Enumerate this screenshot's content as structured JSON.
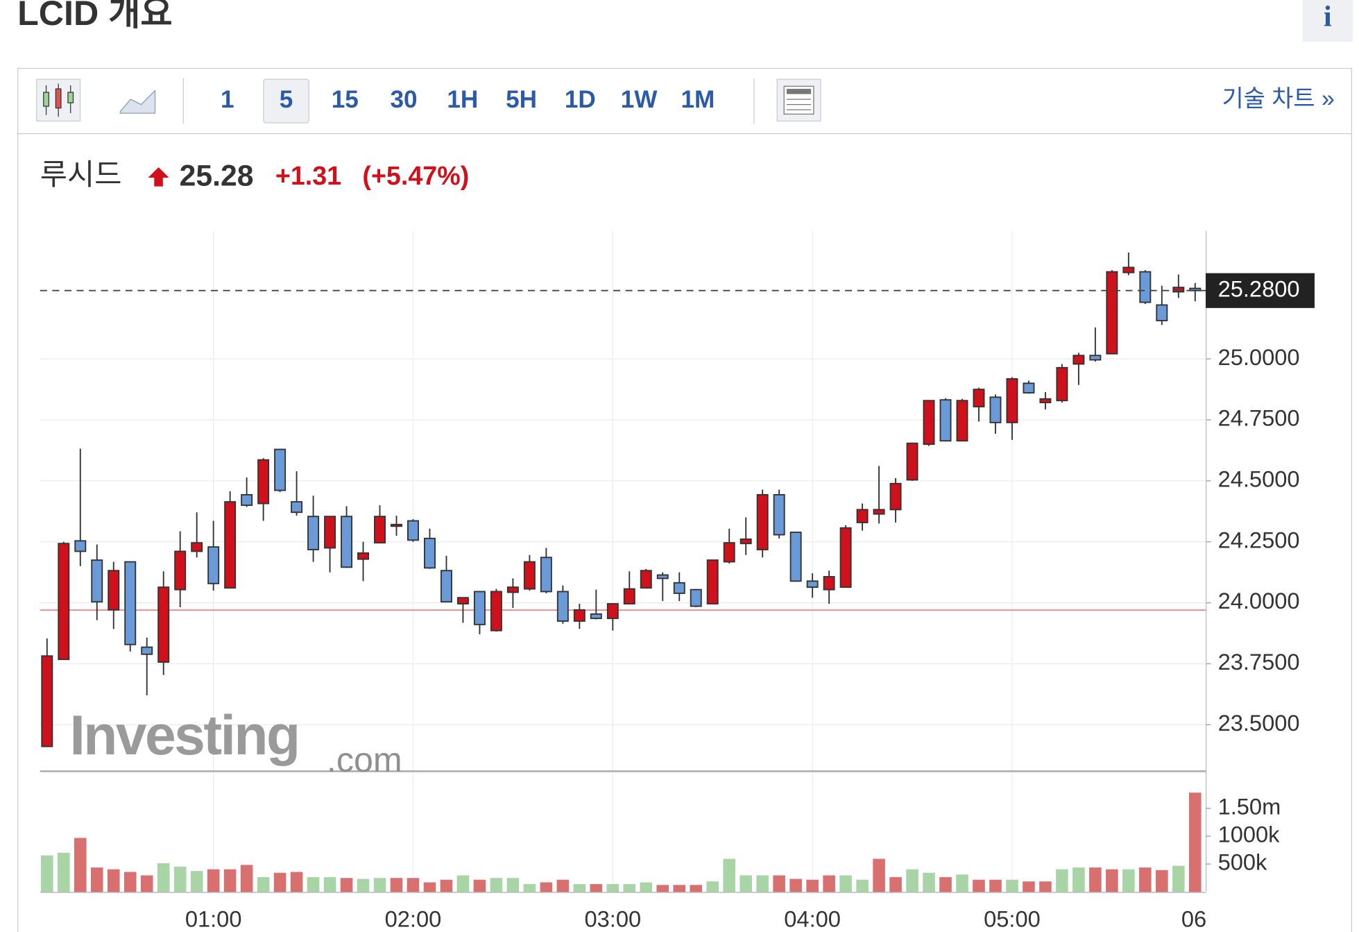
{
  "header": {
    "title": "LCID 개요",
    "info": "i"
  },
  "toolbar": {
    "intervals": [
      "1",
      "5",
      "15",
      "30",
      "1H",
      "5H",
      "1D",
      "1W",
      "1M"
    ],
    "active": "5",
    "technical": "기술 차트 »"
  },
  "quote": {
    "name": "루시드",
    "price": "25.28",
    "change": "+1.31",
    "change_pct": "(+5.47%)"
  },
  "watermark": {
    "brand": "Investing",
    "suffix": ".com"
  },
  "chart_data": {
    "type": "candlestick",
    "categories": [
      null,
      null,
      null,
      null,
      null,
      null,
      null,
      null,
      null,
      null,
      "01:00",
      null,
      null,
      null,
      null,
      null,
      null,
      null,
      null,
      null,
      null,
      null,
      "02:00",
      null,
      null,
      null,
      null,
      null,
      null,
      null,
      null,
      null,
      null,
      null,
      "03:00",
      null,
      null,
      null,
      null,
      null,
      null,
      null,
      null,
      null,
      null,
      null,
      "04:00",
      null,
      null,
      null,
      null,
      null,
      null,
      null,
      null,
      null,
      null,
      null,
      "05:00",
      null,
      null,
      null,
      null,
      null,
      null,
      null,
      null,
      null,
      null,
      null
    ],
    "x_clipped_label": "06",
    "open": [
      23.411,
      23.768,
      24.254,
      24.175,
      23.971,
      24.168,
      23.818,
      23.757,
      24.054,
      24.211,
      24.229,
      24.061,
      24.443,
      24.407,
      24.629,
      24.414,
      24.354,
      24.225,
      24.354,
      24.179,
      24.246,
      24.318,
      24.336,
      24.264,
      24.132,
      23.996,
      24.046,
      23.886,
      24.043,
      24.057,
      24.186,
      24.046,
      23.925,
      23.954,
      23.936,
      23.996,
      24.061,
      24.114,
      24.082,
      24.054,
      23.996,
      24.168,
      24.243,
      24.218,
      24.443,
      24.289,
      24.089,
      24.054,
      24.064,
      24.329,
      24.364,
      24.382,
      24.504,
      24.65,
      24.832,
      24.664,
      24.804,
      24.843,
      24.739,
      24.9,
      24.821,
      24.829,
      24.979,
      25.014,
      25.021,
      25.354,
      25.357,
      25.221,
      25.275,
      25.289
    ],
    "high": [
      23.854,
      24.25,
      24.632,
      24.239,
      24.168,
      24.168,
      23.857,
      24.129,
      24.293,
      24.371,
      24.336,
      24.457,
      24.514,
      24.593,
      24.632,
      24.539,
      24.439,
      24.354,
      24.396,
      24.25,
      24.4,
      24.357,
      24.343,
      24.304,
      24.193,
      24.021,
      24.046,
      24.057,
      24.1,
      24.196,
      24.225,
      24.071,
      23.996,
      24.054,
      23.996,
      24.129,
      24.139,
      24.125,
      24.125,
      24.057,
      24.175,
      24.304,
      24.35,
      24.464,
      24.464,
      24.289,
      24.121,
      24.132,
      24.318,
      24.407,
      24.561,
      24.511,
      24.657,
      24.829,
      24.839,
      24.836,
      24.882,
      24.854,
      24.925,
      24.911,
      24.864,
      24.979,
      25.025,
      25.129,
      25.364,
      25.436,
      25.364,
      25.3,
      25.346,
      25.311
    ],
    "low": [
      23.411,
      23.768,
      24.15,
      23.929,
      23.893,
      23.8,
      23.621,
      23.704,
      23.982,
      24.186,
      24.05,
      24.061,
      24.393,
      24.336,
      24.454,
      24.357,
      24.168,
      24.125,
      24.143,
      24.089,
      24.246,
      24.275,
      24.25,
      24.139,
      24.004,
      23.918,
      23.871,
      23.882,
      23.979,
      24.05,
      24.039,
      23.914,
      23.893,
      23.932,
      23.886,
      23.993,
      24.061,
      24.007,
      24.007,
      23.982,
      23.996,
      24.161,
      24.196,
      24.186,
      24.264,
      24.086,
      24.021,
      23.996,
      24.064,
      24.296,
      24.325,
      24.329,
      24.5,
      24.643,
      24.661,
      24.664,
      24.743,
      24.693,
      24.668,
      24.857,
      24.793,
      24.821,
      24.893,
      24.989,
      25.021,
      25.343,
      25.225,
      25.139,
      25.25,
      25.236
    ],
    "close": [
      23.782,
      24.243,
      24.211,
      24.004,
      24.132,
      23.829,
      23.789,
      24.064,
      24.211,
      24.246,
      24.079,
      24.414,
      24.4,
      24.586,
      24.461,
      24.371,
      24.218,
      24.354,
      24.146,
      24.204,
      24.354,
      24.321,
      24.257,
      24.143,
      24.004,
      24.021,
      23.911,
      24.046,
      24.064,
      24.168,
      24.046,
      23.925,
      23.971,
      23.936,
      23.996,
      24.057,
      24.132,
      24.1,
      24.039,
      23.986,
      24.175,
      24.246,
      24.261,
      24.443,
      24.279,
      24.089,
      24.064,
      24.107,
      24.307,
      24.382,
      24.382,
      24.489,
      24.654,
      24.829,
      24.664,
      24.829,
      24.875,
      24.739,
      24.918,
      24.861,
      24.836,
      24.964,
      25.014,
      24.996,
      25.357,
      25.375,
      25.232,
      25.157,
      25.293,
      25.28
    ],
    "up_color": "#d0111b",
    "down_color": "#6a9bd8",
    "ylim": [
      23.311,
      25.525
    ],
    "yticks": [
      {
        "value": 23.5,
        "label": "23.5000"
      },
      {
        "value": 23.75,
        "label": "23.7500"
      },
      {
        "value": 24,
        "label": "24.0000"
      },
      {
        "value": 24.25,
        "label": "24.2500"
      },
      {
        "value": 24.5,
        "label": "24.5000"
      },
      {
        "value": 24.75,
        "label": "24.7500"
      },
      {
        "value": 25,
        "label": "25.0000"
      }
    ],
    "last": {
      "value": 25.28,
      "label": "25.2800"
    },
    "prev_close": 23.97,
    "volume": [
      656000,
      703000,
      969000,
      438000,
      406000,
      359000,
      297000,
      516000,
      453000,
      375000,
      406000,
      406000,
      484000,
      266000,
      344000,
      359000,
      266000,
      266000,
      250000,
      234000,
      250000,
      250000,
      250000,
      172000,
      219000,
      297000,
      219000,
      250000,
      250000,
      141000,
      172000,
      219000,
      141000,
      141000,
      141000,
      141000,
      172000,
      125000,
      125000,
      125000,
      188000,
      594000,
      297000,
      297000,
      297000,
      234000,
      219000,
      297000,
      297000,
      219000,
      594000,
      266000,
      406000,
      344000,
      266000,
      313000,
      219000,
      219000,
      219000,
      188000,
      188000,
      406000,
      438000,
      438000,
      406000,
      406000,
      438000,
      391000,
      469000,
      1781000
    ],
    "volume_colors": [
      "#a9d5a6",
      "#a9d5a6",
      "#d97070",
      "#d97070",
      "#d97070",
      "#d97070",
      "#d97070",
      "#a9d5a6",
      "#a9d5a6",
      "#a9d5a6",
      "#d97070",
      "#d97070",
      "#d97070",
      "#a9d5a6",
      "#d97070",
      "#d97070",
      "#a9d5a6",
      "#a9d5a6",
      "#d97070",
      "#a9d5a6",
      "#a9d5a6",
      "#d97070",
      "#d97070",
      "#d97070",
      "#d97070",
      "#a9d5a6",
      "#d97070",
      "#a9d5a6",
      "#a9d5a6",
      "#a9d5a6",
      "#d97070",
      "#d97070",
      "#a9d5a6",
      "#d97070",
      "#a9d5a6",
      "#a9d5a6",
      "#a9d5a6",
      "#d97070",
      "#d97070",
      "#d97070",
      "#a9d5a6",
      "#a9d5a6",
      "#a9d5a6",
      "#a9d5a6",
      "#d97070",
      "#d97070",
      "#d97070",
      "#d97070",
      "#a9d5a6",
      "#a9d5a6",
      "#d97070",
      "#d97070",
      "#a9d5a6",
      "#a9d5a6",
      "#d97070",
      "#a9d5a6",
      "#d97070",
      "#d97070",
      "#a9d5a6",
      "#d97070",
      "#d97070",
      "#a9d5a6",
      "#a9d5a6",
      "#d97070",
      "#d97070",
      "#a9d5a6",
      "#d97070",
      "#d97070",
      "#a9d5a6",
      "#d97070"
    ],
    "vlim": [
      0,
      2125000
    ],
    "vticks": [
      {
        "value": 500000,
        "label": "500k"
      },
      {
        "value": 1000000,
        "label": "1000k"
      },
      {
        "value": 1500000,
        "label": "1.50m"
      }
    ],
    "grid": true
  }
}
